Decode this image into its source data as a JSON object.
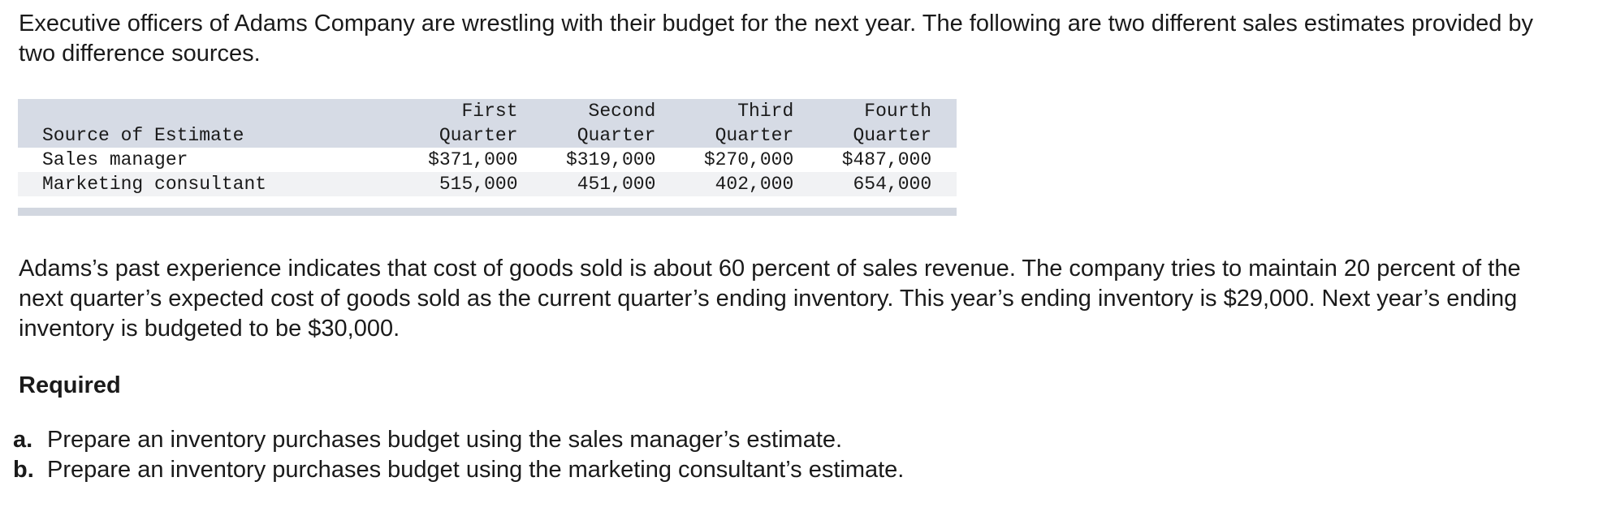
{
  "intro_text": "Executive officers of Adams Company are wrestling with their budget for the next year. The following are two different sales estimates provided by two difference sources.",
  "table": {
    "header_top": [
      "First",
      "Second",
      "Third",
      "Fourth"
    ],
    "header_source": "Source of Estimate",
    "header_bottom": [
      "Quarter",
      "Quarter",
      "Quarter",
      "Quarter"
    ],
    "rows": [
      {
        "label": "Sales manager",
        "values": [
          "$371,000",
          "$319,000",
          "$270,000",
          "$487,000"
        ]
      },
      {
        "label": "Marketing consultant",
        "values": [
          "515,000",
          "451,000",
          "402,000",
          "654,000"
        ]
      }
    ]
  },
  "cogs_text": "Adams’s past experience indicates that cost of goods sold is about 60 percent of sales revenue. The company tries to maintain 20 percent of the next quarter’s expected cost of goods sold as the current quarter’s ending inventory. This year’s ending inventory is $29,000. Next year’s ending inventory is budgeted to be $30,000.",
  "required_heading": "Required",
  "requirements": [
    {
      "letter": "a.",
      "text": "Prepare an inventory purchases budget using the sales manager’s estimate."
    },
    {
      "letter": "b.",
      "text": "Prepare an inventory purchases budget using the marketing consultant’s estimate."
    }
  ]
}
